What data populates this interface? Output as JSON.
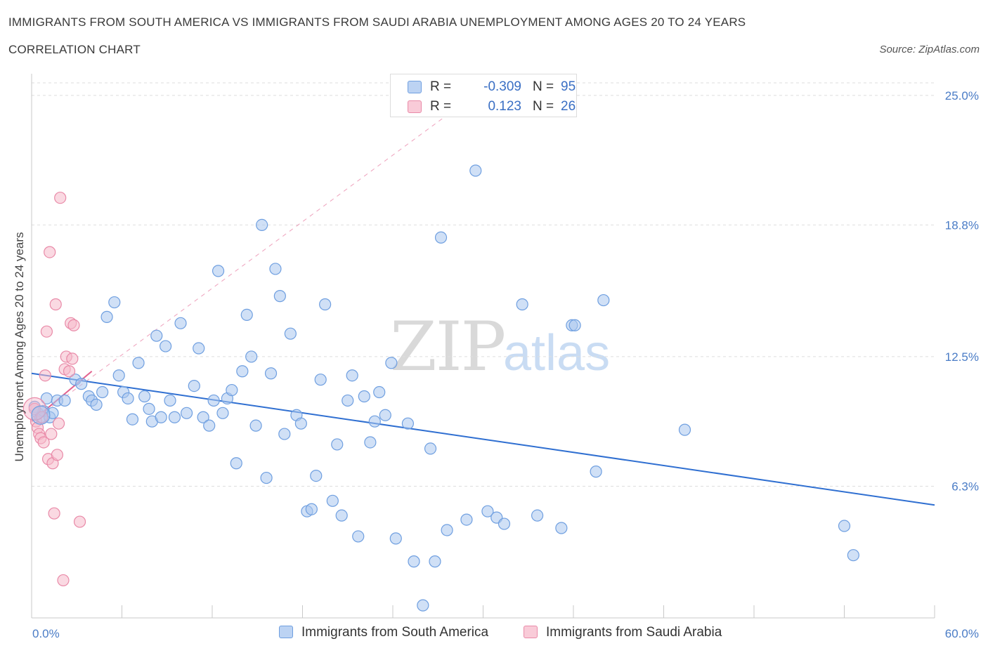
{
  "header": {
    "title": "IMMIGRANTS FROM SOUTH AMERICA VS IMMIGRANTS FROM SAUDI ARABIA UNEMPLOYMENT AMONG AGES 20 TO 24 YEARS",
    "subtitle": "CORRELATION CHART",
    "source": "Source: ZipAtlas.com"
  },
  "watermark": {
    "zip": "ZIP",
    "atlas": "atlas"
  },
  "legend_top": [
    {
      "r_label": "R =",
      "r_value": "-0.309",
      "n_label": "N =",
      "n_value": "95"
    },
    {
      "r_label": "R =",
      "r_value": "0.123",
      "n_label": "N =",
      "n_value": "26"
    }
  ],
  "legend_bottom": [
    {
      "label": "Immigrants from South America"
    },
    {
      "label": "Immigrants from Saudi Arabia"
    }
  ],
  "colors": {
    "blue_fill": "#a9c6ef",
    "blue_stroke": "#6f9fe0",
    "blue_line": "#2f6fd1",
    "pink_fill": "#f6b9cb",
    "pink_stroke": "#e98aa8",
    "pink_line": "#e3638f",
    "grid": "#dedede",
    "tick_label": "#4a7cc6"
  },
  "chart_data": {
    "type": "scatter",
    "xlabel": "",
    "ylabel": "Unemployment Among Ages 20 to 24 years",
    "xlim": [
      0,
      60
    ],
    "ylim": [
      0,
      25.6
    ],
    "x_tick_labels": [
      "0.0%",
      "60.0%"
    ],
    "y_ticks": [
      6.3,
      12.5,
      18.8,
      25.0
    ],
    "y_tick_labels": [
      "6.3%",
      "12.5%",
      "18.8%",
      "25.0%"
    ],
    "grid": true,
    "legend_position": "top-center",
    "series": [
      {
        "name": "Immigrants from South America",
        "r": -0.309,
        "n": 95,
        "trend": {
          "x": [
            0,
            60
          ],
          "y": [
            11.7,
            5.4
          ]
        },
        "points": [
          [
            0.2,
            10.1
          ],
          [
            0.4,
            9.8
          ],
          [
            0.6,
            9.6
          ],
          [
            0.8,
            9.9
          ],
          [
            1.0,
            10.5
          ],
          [
            1.2,
            9.6
          ],
          [
            1.4,
            9.8
          ],
          [
            1.7,
            10.4
          ],
          [
            2.2,
            10.4
          ],
          [
            2.9,
            11.4
          ],
          [
            3.3,
            11.2
          ],
          [
            3.8,
            10.6
          ],
          [
            4.0,
            10.4
          ],
          [
            4.3,
            10.2
          ],
          [
            4.7,
            10.8
          ],
          [
            5.0,
            14.4
          ],
          [
            5.5,
            15.1
          ],
          [
            5.8,
            11.6
          ],
          [
            6.1,
            10.8
          ],
          [
            6.4,
            10.5
          ],
          [
            6.7,
            9.5
          ],
          [
            7.1,
            12.2
          ],
          [
            7.5,
            10.6
          ],
          [
            7.8,
            10.0
          ],
          [
            8.0,
            9.4
          ],
          [
            8.3,
            13.5
          ],
          [
            8.6,
            9.6
          ],
          [
            8.9,
            13.0
          ],
          [
            9.2,
            10.4
          ],
          [
            9.5,
            9.6
          ],
          [
            9.9,
            14.1
          ],
          [
            10.3,
            9.8
          ],
          [
            10.8,
            11.1
          ],
          [
            11.1,
            12.9
          ],
          [
            11.4,
            9.6
          ],
          [
            11.8,
            9.2
          ],
          [
            12.1,
            10.4
          ],
          [
            12.4,
            16.6
          ],
          [
            12.7,
            9.8
          ],
          [
            13.0,
            10.5
          ],
          [
            13.3,
            10.9
          ],
          [
            13.6,
            7.4
          ],
          [
            14.0,
            11.8
          ],
          [
            14.3,
            14.5
          ],
          [
            14.6,
            12.5
          ],
          [
            14.9,
            9.2
          ],
          [
            15.3,
            18.8
          ],
          [
            15.6,
            6.7
          ],
          [
            15.9,
            11.7
          ],
          [
            16.2,
            16.7
          ],
          [
            16.5,
            15.4
          ],
          [
            16.8,
            8.8
          ],
          [
            17.2,
            13.6
          ],
          [
            17.6,
            9.7
          ],
          [
            17.9,
            9.3
          ],
          [
            18.3,
            5.1
          ],
          [
            18.6,
            5.2
          ],
          [
            18.9,
            6.8
          ],
          [
            19.2,
            11.4
          ],
          [
            19.5,
            15.0
          ],
          [
            20.0,
            5.6
          ],
          [
            20.3,
            8.3
          ],
          [
            20.6,
            4.9
          ],
          [
            21.0,
            10.4
          ],
          [
            21.3,
            11.6
          ],
          [
            21.7,
            3.9
          ],
          [
            22.1,
            10.6
          ],
          [
            22.5,
            8.4
          ],
          [
            22.8,
            9.4
          ],
          [
            23.1,
            10.8
          ],
          [
            23.5,
            9.7
          ],
          [
            23.9,
            12.2
          ],
          [
            24.2,
            3.8
          ],
          [
            25.0,
            9.3
          ],
          [
            25.4,
            2.7
          ],
          [
            26.0,
            0.6
          ],
          [
            26.5,
            8.1
          ],
          [
            26.8,
            2.7
          ],
          [
            27.2,
            18.2
          ],
          [
            27.6,
            4.2
          ],
          [
            28.9,
            4.7
          ],
          [
            29.5,
            21.4
          ],
          [
            30.3,
            5.1
          ],
          [
            30.9,
            4.8
          ],
          [
            31.4,
            4.5
          ],
          [
            32.6,
            15.0
          ],
          [
            33.6,
            4.9
          ],
          [
            35.2,
            4.3
          ],
          [
            35.9,
            14.0
          ],
          [
            36.1,
            14.0
          ],
          [
            37.5,
            7.0
          ],
          [
            38.0,
            15.2
          ],
          [
            43.4,
            9.0
          ],
          [
            54.0,
            4.4
          ],
          [
            54.6,
            3.0
          ]
        ]
      },
      {
        "name": "Immigrants from Saudi Arabia",
        "r": 0.123,
        "n": 26,
        "trend": {
          "x": [
            0,
            4.0
          ],
          "y": [
            9.4,
            11.8
          ]
        },
        "trend_extended": {
          "x": [
            0,
            27.5
          ],
          "y": [
            9.4,
            24.0
          ]
        },
        "points": [
          [
            0.2,
            10.0
          ],
          [
            0.3,
            9.4
          ],
          [
            0.4,
            9.1
          ],
          [
            0.5,
            8.8
          ],
          [
            0.6,
            8.6
          ],
          [
            0.7,
            9.6
          ],
          [
            0.8,
            8.4
          ],
          [
            0.9,
            11.6
          ],
          [
            1.0,
            13.7
          ],
          [
            1.1,
            7.6
          ],
          [
            1.2,
            17.5
          ],
          [
            1.3,
            8.8
          ],
          [
            1.4,
            7.4
          ],
          [
            1.5,
            5.0
          ],
          [
            1.6,
            15.0
          ],
          [
            1.7,
            7.8
          ],
          [
            1.8,
            9.3
          ],
          [
            1.9,
            20.1
          ],
          [
            2.1,
            1.8
          ],
          [
            2.2,
            11.9
          ],
          [
            2.3,
            12.5
          ],
          [
            2.5,
            11.8
          ],
          [
            2.6,
            14.1
          ],
          [
            2.7,
            12.4
          ],
          [
            2.8,
            14.0
          ],
          [
            3.2,
            4.6
          ]
        ]
      }
    ]
  }
}
